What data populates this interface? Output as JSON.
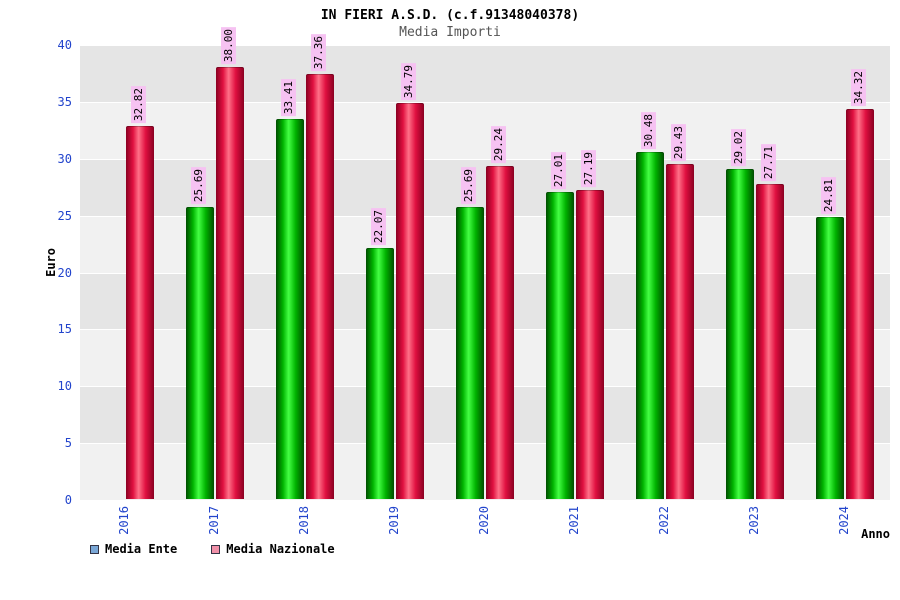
{
  "header": {
    "title": "IN FIERI A.S.D. (c.f.91348040378)",
    "subtitle": "Media Importi"
  },
  "chart_data": {
    "type": "bar",
    "title": "IN FIERI A.S.D. (c.f.91348040378)",
    "subtitle": "Media Importi",
    "categories": [
      "2016",
      "2017",
      "2018",
      "2019",
      "2020",
      "2021",
      "2022",
      "2023",
      "2024"
    ],
    "series": [
      {
        "name": "Media Ente",
        "values": [
          null,
          25.69,
          33.41,
          22.07,
          25.69,
          27.01,
          30.48,
          29.02,
          24.81
        ]
      },
      {
        "name": "Media Nazionale",
        "values": [
          32.82,
          38.0,
          37.36,
          34.79,
          29.24,
          27.19,
          29.43,
          27.71,
          34.32
        ]
      }
    ],
    "xlabel": "Anno",
    "ylabel": "Euro",
    "ylim": [
      0,
      40
    ],
    "yticks": [
      0,
      5,
      10,
      15,
      20,
      25,
      30,
      35,
      40
    ],
    "grid": true,
    "legend_position": "bottom-left"
  },
  "colors": {
    "bar_ente_dark": "#004d00",
    "bar_ente_mid": "#00b300",
    "bar_ente_light": "#44ff44",
    "bar_naz_dark": "#8a0022",
    "bar_naz_mid": "#e01040",
    "bar_naz_light": "#ff7088",
    "legend_ente": "#7aa7d6",
    "legend_nazionale": "#f090a8",
    "axis_text": "#2244cc",
    "value_label_bg": "#f6c2f2",
    "band_light": "#f1f1f1",
    "band_dark": "#e5e5e5",
    "grid": "#ffffff"
  }
}
